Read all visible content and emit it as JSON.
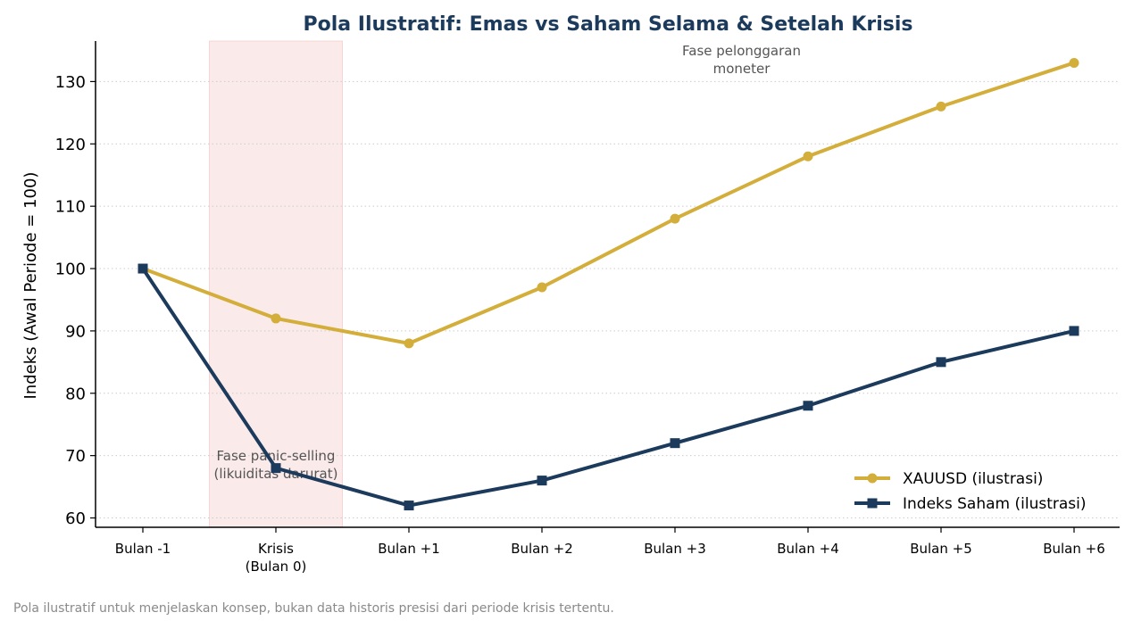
{
  "chart_data": {
    "type": "line",
    "title": "Pola Ilustratif: Emas vs Saham Selama & Setelah Krisis",
    "xlabel": "",
    "ylabel": "Indeks (Awal Periode = 100)",
    "categories": [
      "Bulan -1",
      "Krisis\n(Bulan 0)",
      "Bulan +1",
      "Bulan +2",
      "Bulan +3",
      "Bulan +4",
      "Bulan +5",
      "Bulan +6"
    ],
    "yticks": [
      60,
      70,
      80,
      90,
      100,
      110,
      120,
      130
    ],
    "ylim": [
      58.5,
      136.5
    ],
    "grid": "horizontal dotted",
    "legend_position": "bottom-right",
    "series": [
      {
        "name": "XAUUSD (ilustrasi)",
        "values": [
          100,
          92,
          88,
          97,
          108,
          118,
          126,
          133
        ],
        "color": "#d4ae3a",
        "marker": "circle"
      },
      {
        "name": "Indeks Saham (ilustrasi)",
        "values": [
          100,
          68,
          62,
          66,
          72,
          78,
          85,
          90
        ],
        "color": "#1b3a5c",
        "marker": "square"
      }
    ],
    "shaded_region": {
      "from_category": 1,
      "color": "#f5d0cf"
    },
    "annotations": [
      {
        "text": "Fase panic-selling\n(likuiditas darurat)",
        "x": 1,
        "y": 66.5
      },
      {
        "text": "Fase pelonggaran\nmoneter",
        "x": 4.5,
        "y": 131.5
      }
    ],
    "title_color": "#1b3a5c"
  },
  "footnote": "Pola ilustratif untuk menjelaskan konsep, bukan data historis presisi dari periode krisis tertentu."
}
